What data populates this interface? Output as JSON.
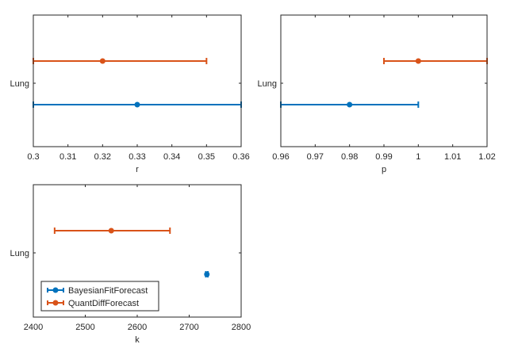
{
  "chart_data": [
    {
      "type": "errorbar",
      "xlabel": "r",
      "categories": [
        "Lung"
      ],
      "xlim": [
        0.3,
        0.36
      ],
      "xticks": [
        "0.3",
        "0.31",
        "0.32",
        "0.33",
        "0.34",
        "0.35",
        "0.36"
      ],
      "series": [
        {
          "name": "BayesianFitForecast",
          "value": 0.33,
          "lower": 0.3,
          "upper": 0.36
        },
        {
          "name": "QuantDiffForecast",
          "value": 0.32,
          "lower": 0.3,
          "upper": 0.35
        }
      ]
    },
    {
      "type": "errorbar",
      "xlabel": "p",
      "categories": [
        "Lung"
      ],
      "xlim": [
        0.96,
        1.02
      ],
      "xticks": [
        "0.96",
        "0.97",
        "0.98",
        "0.99",
        "1",
        "1.01",
        "1.02"
      ],
      "series": [
        {
          "name": "BayesianFitForecast",
          "value": 0.98,
          "lower": 0.96,
          "upper": 1.0
        },
        {
          "name": "QuantDiffForecast",
          "value": 1.0,
          "lower": 0.99,
          "upper": 1.02
        }
      ]
    },
    {
      "type": "errorbar",
      "xlabel": "k",
      "categories": [
        "Lung"
      ],
      "xlim": [
        2400,
        2800
      ],
      "xticks": [
        "2400",
        "2500",
        "2600",
        "2700",
        "2800"
      ],
      "legend": {
        "location": "bottom-left",
        "entries": [
          "BayesianFitForecast",
          "QuantDiffForecast"
        ]
      },
      "series": [
        {
          "name": "BayesianFitForecast",
          "value": 2734,
          "lower": 2732,
          "upper": 2736
        },
        {
          "name": "QuantDiffForecast",
          "value": 2550,
          "lower": 2441,
          "upper": 2663
        }
      ]
    }
  ],
  "colors": {
    "BayesianFitForecast": "#0072BD",
    "QuantDiffForecast": "#D95319",
    "axis": "#262626"
  }
}
